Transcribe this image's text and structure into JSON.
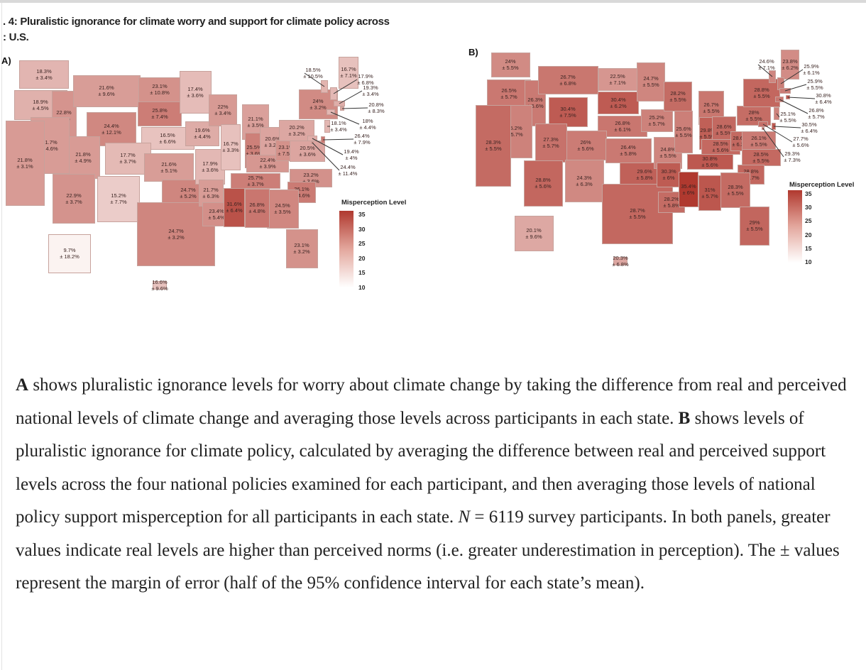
{
  "figure": {
    "title_line1": ". 4: Pluralistic ignorance for climate worry and support for climate policy across",
    "title_line2": ": U.S."
  },
  "legend": {
    "title": "Misperception Level",
    "ticks": [
      "35",
      "30",
      "25",
      "20",
      "15",
      "10"
    ]
  },
  "colors": {
    "low": "#fbf3f1",
    "high": "#b0392f"
  },
  "chart_data": [
    {
      "type": "choropleth",
      "panel": "A)",
      "legend_title": "Misperception Level",
      "scale": [
        10,
        35
      ],
      "states": [
        {
          "code": "WA",
          "value": "18.3%",
          "moe": "± 3.4%",
          "v": 18.3
        },
        {
          "code": "OR",
          "value": "18.9%",
          "moe": "± 4.5%",
          "v": 18.9
        },
        {
          "code": "ID",
          "value": "22.8%",
          "moe": "± 9%",
          "v": 22.8
        },
        {
          "code": "MT",
          "value": "21.6%",
          "moe": "± 9.6%",
          "v": 21.6
        },
        {
          "code": "WY",
          "value": "24.4%",
          "moe": "± 12.1%",
          "v": 24.4
        },
        {
          "code": "ND",
          "value": "23.1%",
          "moe": "± 10.8%",
          "v": 23.1
        },
        {
          "code": "SD",
          "value": "25.8%",
          "moe": "± 7.4%",
          "v": 25.8
        },
        {
          "code": "MN",
          "value": "17.4%",
          "moe": "± 3.6%",
          "v": 17.4
        },
        {
          "code": "NE",
          "value": "16.5%",
          "moe": "± 6.6%",
          "v": 16.5
        },
        {
          "code": "CO",
          "value": "17.7%",
          "moe": "± 3.7%",
          "v": 17.7
        },
        {
          "code": "UT",
          "value": "21.8%",
          "moe": "± 4.9%",
          "v": 21.8
        },
        {
          "code": "NV",
          "value": "21.7%",
          "moe": "± 4.6%",
          "v": 21.7
        },
        {
          "code": "CA",
          "value": "21.8%",
          "moe": "± 3.1%",
          "v": 21.8
        },
        {
          "code": "AZ",
          "value": "22.9%",
          "moe": "± 3.7%",
          "v": 22.9
        },
        {
          "code": "NM",
          "value": "15.2%",
          "moe": "± 7.7%",
          "v": 15.2
        },
        {
          "code": "KS",
          "value": "21.6%",
          "moe": "± 5.1%",
          "v": 21.6
        },
        {
          "code": "OK",
          "value": "24.7%",
          "moe": "± 5.2%",
          "v": 24.7
        },
        {
          "code": "TX",
          "value": "24.7%",
          "moe": "± 3.2%",
          "v": 24.7
        },
        {
          "code": "AK",
          "value": "9.7%",
          "moe": "± 18.2%",
          "v": 9.7
        },
        {
          "code": "HI",
          "value": "16.6%",
          "moe": "± 9.6%",
          "v": 16.6
        },
        {
          "code": "IA",
          "value": "19.6%",
          "moe": "± 4.4%",
          "v": 19.6
        },
        {
          "code": "MO",
          "value": "17.9%",
          "moe": "± 3.6%",
          "v": 17.9
        },
        {
          "code": "AR",
          "value": "21.7%",
          "moe": "± 6.3%",
          "v": 21.7
        },
        {
          "code": "LA",
          "value": "23.4%",
          "moe": "± 5.4%",
          "v": 23.4
        },
        {
          "code": "WI",
          "value": "22%",
          "moe": "± 3.4%",
          "v": 22
        },
        {
          "code": "MI",
          "value": "21.1%",
          "moe": "± 3.5%",
          "v": 21.1
        },
        {
          "code": "IL",
          "value": "16.7%",
          "moe": "± 3.3%",
          "v": 16.7
        },
        {
          "code": "IN",
          "value": "25.5%",
          "moe": "± 3.6%",
          "v": 25.5
        },
        {
          "code": "OH",
          "value": "20.6%",
          "moe": "± 3.2%",
          "v": 20.6
        },
        {
          "code": "KY",
          "value": "22.4%",
          "moe": "± 3.9%",
          "v": 22.4
        },
        {
          "code": "WV",
          "value": "23.1%",
          "moe": "± 7.5%",
          "v": 23.1
        },
        {
          "code": "VA",
          "value": "20.5%",
          "moe": "± 3.6%",
          "v": 20.5
        },
        {
          "code": "PA",
          "value": "20.2%",
          "moe": "± 3.2%",
          "v": 20.2
        },
        {
          "code": "NY",
          "value": "24%",
          "moe": "± 3.2%",
          "v": 24
        },
        {
          "code": "TN",
          "value": "25.7%",
          "moe": "± 3.7%",
          "v": 25.7
        },
        {
          "code": "NC",
          "value": "23.2%",
          "moe": "± 3.6%",
          "v": 23.2
        },
        {
          "code": "SC",
          "value": "26.1%",
          "moe": "± 4.6%",
          "v": 26.1
        },
        {
          "code": "GA",
          "value": "24.5%",
          "moe": "± 3.5%",
          "v": 24.5
        },
        {
          "code": "AL",
          "value": "26.8%",
          "moe": "± 4.8%",
          "v": 26.8
        },
        {
          "code": "MS",
          "value": "31.6%",
          "moe": "± 6.4%",
          "v": 31.6
        },
        {
          "code": "FL",
          "value": "23.1%",
          "moe": "± 3.2%",
          "v": 23.1
        },
        {
          "code": "ME",
          "value": "16.7%",
          "moe": "± 7.1%",
          "v": 16.7
        },
        {
          "code": "VT",
          "value": "18.5%",
          "moe": "± 10.5%",
          "v": 18.5
        },
        {
          "code": "NH",
          "value": "17.9%",
          "moe": "± 6.8%",
          "v": 17.9
        },
        {
          "code": "MA",
          "value": "19.3%",
          "moe": "± 3.4%",
          "v": 19.3
        },
        {
          "code": "RI",
          "value": "20.8%",
          "moe": "± 8.3%",
          "v": 20.8
        },
        {
          "code": "CT",
          "value": "18%",
          "moe": "± 4.4%",
          "v": 18
        },
        {
          "code": "NJ",
          "value": "18.1%",
          "moe": "± 3.4%",
          "v": 18.1
        },
        {
          "code": "DE",
          "value": "26.4%",
          "moe": "± 7.9%",
          "v": 26.4
        },
        {
          "code": "MD",
          "value": "19.4%",
          "moe": "± 4%",
          "v": 19.4
        },
        {
          "code": "DC",
          "value": "24.4%",
          "moe": "± 11.4%",
          "v": 24.4
        }
      ]
    },
    {
      "type": "choropleth",
      "panel": "B)",
      "legend_title": "Misperception Level",
      "scale": [
        10,
        35
      ],
      "states": [
        {
          "code": "WA",
          "value": "24%",
          "moe": "± 5.5%",
          "v": 24
        },
        {
          "code": "OR",
          "value": "26.5%",
          "moe": "± 5.7%",
          "v": 26.5
        },
        {
          "code": "ID",
          "value": "26.3%",
          "moe": "± 6.6%",
          "v": 26.3
        },
        {
          "code": "MT",
          "value": "26.7%",
          "moe": "± 6.8%",
          "v": 26.7
        },
        {
          "code": "WY",
          "value": "30.4%",
          "moe": "± 7.5%",
          "v": 30.4
        },
        {
          "code": "ND",
          "value": "22.5%",
          "moe": "± 7.1%",
          "v": 22.5
        },
        {
          "code": "SD",
          "value": "30.4%",
          "moe": "± 6.2%",
          "v": 30.4
        },
        {
          "code": "MN",
          "value": "24.7%",
          "moe": "± 5.5%",
          "v": 24.7
        },
        {
          "code": "NE",
          "value": "26.8%",
          "moe": "± 6.1%",
          "v": 26.8
        },
        {
          "code": "CO",
          "value": "26%",
          "moe": "± 5.6%",
          "v": 26
        },
        {
          "code": "UT",
          "value": "27.3%",
          "moe": "± 5.7%",
          "v": 27.3
        },
        {
          "code": "NV",
          "value": "25.2%",
          "moe": "± 5.7%",
          "v": 25.2
        },
        {
          "code": "CA",
          "value": "28.3%",
          "moe": "± 5.5%",
          "v": 28.3
        },
        {
          "code": "AZ",
          "value": "28.8%",
          "moe": "± 5.6%",
          "v": 28.8
        },
        {
          "code": "NM",
          "value": "24.3%",
          "moe": "± 6.3%",
          "v": 24.3
        },
        {
          "code": "KS",
          "value": "26.4%",
          "moe": "± 5.8%",
          "v": 26.4
        },
        {
          "code": "OK",
          "value": "29.6%",
          "moe": "± 5.8%",
          "v": 29.6
        },
        {
          "code": "TX",
          "value": "28.7%",
          "moe": "± 5.5%",
          "v": 28.7
        },
        {
          "code": "AK",
          "value": "20.1%",
          "moe": "± 9.6%",
          "v": 20.1
        },
        {
          "code": "HI",
          "value": "20.3%",
          "moe": "± 6.8%",
          "v": 20.3
        },
        {
          "code": "IA",
          "value": "25.2%",
          "moe": "± 5.7%",
          "v": 25.2
        },
        {
          "code": "MO",
          "value": "24.8%",
          "moe": "± 5.5%",
          "v": 24.8
        },
        {
          "code": "AR",
          "value": "30.3%",
          "moe": "± 6%",
          "v": 30.3
        },
        {
          "code": "LA",
          "value": "28.2%",
          "moe": "± 5.8%",
          "v": 28.2
        },
        {
          "code": "WI",
          "value": "28.2%",
          "moe": "± 5.5%",
          "v": 28.2
        },
        {
          "code": "MI",
          "value": "26.7%",
          "moe": "± 5.5%",
          "v": 26.7
        },
        {
          "code": "IL",
          "value": "25.6%",
          "moe": "± 5.5%",
          "v": 25.6
        },
        {
          "code": "IN",
          "value": "29.8%",
          "moe": "± 5.5%",
          "v": 29.8
        },
        {
          "code": "OH",
          "value": "28.6%",
          "moe": "± 5.5%",
          "v": 28.6
        },
        {
          "code": "KY",
          "value": "28.5%",
          "moe": "± 5.6%",
          "v": 28.5
        },
        {
          "code": "WV",
          "value": "28.6%",
          "moe": "± 6.3%",
          "v": 28.6
        },
        {
          "code": "VA",
          "value": "26.1%",
          "moe": "± 5.5%",
          "v": 26.1
        },
        {
          "code": "PA",
          "value": "28%",
          "moe": "± 5.5%",
          "v": 28
        },
        {
          "code": "NY",
          "value": "28.8%",
          "moe": "± 5.5%",
          "v": 28.8
        },
        {
          "code": "TN",
          "value": "30.8%",
          "moe": "± 5.6%",
          "v": 30.8
        },
        {
          "code": "NC",
          "value": "28.5%",
          "moe": "± 5.5%",
          "v": 28.5
        },
        {
          "code": "SC",
          "value": "28.8%",
          "moe": "± 5.7%",
          "v": 28.8
        },
        {
          "code": "GA",
          "value": "28.3%",
          "moe": "± 5.5%",
          "v": 28.3
        },
        {
          "code": "AL",
          "value": "31%",
          "moe": "± 5.7%",
          "v": 31
        },
        {
          "code": "MS",
          "value": "35.4%",
          "moe": "± 6%",
          "v": 35.4
        },
        {
          "code": "FL",
          "value": "29%",
          "moe": "± 5.5%",
          "v": 29
        },
        {
          "code": "ME",
          "value": "23.8%",
          "moe": "± 6.2%",
          "v": 23.8
        },
        {
          "code": "VT",
          "value": "24.6%",
          "moe": "± 7.1%",
          "v": 24.6
        },
        {
          "code": "NH",
          "value": "25.9%",
          "moe": "± 6.1%",
          "v": 25.9
        },
        {
          "code": "MA",
          "value": "25.9%",
          "moe": "± 5.5%",
          "v": 25.9
        },
        {
          "code": "RI",
          "value": "30.8%",
          "moe": "± 6.4%",
          "v": 30.8
        },
        {
          "code": "CT",
          "value": "26.8%",
          "moe": "± 5.7%",
          "v": 26.8
        },
        {
          "code": "NJ",
          "value": "25.1%",
          "moe": "± 5.5%",
          "v": 25.1
        },
        {
          "code": "DE",
          "value": "30.5%",
          "moe": "± 6.4%",
          "v": 30.5
        },
        {
          "code": "MD",
          "value": "27.7%",
          "moe": "± 5.6%",
          "v": 27.7
        },
        {
          "code": "DC",
          "value": "29.3%",
          "moe": "± 7.3%",
          "v": 29.3
        }
      ]
    }
  ],
  "caption": {
    "a_label": "A",
    "a_text": " shows pluralistic ignorance levels for worry about climate change by taking the difference from real and perceived national levels of climate change and averaging those levels across participants in each state. ",
    "b_label": "B",
    "b_text": " shows levels of pluralistic ignorance for climate policy, calculated by averaging the difference between real and perceived support levels across the four national policies examined for each participant, and then averaging those levels of national policy support misperception for all participants in each state. ",
    "n_label": "N",
    "n_text": " = 6119 survey participants. In both panels, greater values indicate real levels are higher than perceived norms (i.e. greater underestimation in perception). The ± values represent the margin of error (half of the 95% confidence interval for each state’s mean)."
  }
}
